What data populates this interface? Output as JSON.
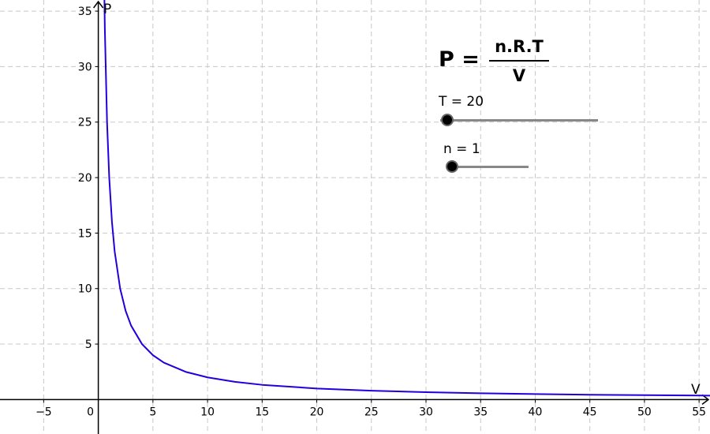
{
  "formula": {
    "lhs": "P",
    "equals": "=",
    "numerator": "n.R.T",
    "denominator": "V"
  },
  "sliders": [
    {
      "label": "T = 20",
      "value": 20
    },
    {
      "label": "n = 1",
      "value": 1
    }
  ],
  "chart_data": {
    "type": "line",
    "xlabel": "V",
    "ylabel": "P",
    "xlim": [
      -9,
      56
    ],
    "ylim": [
      -3.1,
      36
    ],
    "x_ticks": [
      -5,
      0,
      5,
      10,
      15,
      20,
      25,
      30,
      35,
      40,
      45,
      50,
      55
    ],
    "y_ticks": [
      5,
      10,
      15,
      20,
      25,
      30,
      35
    ],
    "grid": true,
    "series": [
      {
        "color": "#2200dd",
        "x": [
          0.5,
          0.6,
          0.8,
          1,
          1.25,
          1.5,
          2,
          2.5,
          3,
          4,
          5,
          6,
          8,
          10,
          12.5,
          15,
          20,
          25,
          30,
          35,
          40,
          45,
          50,
          56
        ],
        "y": [
          40,
          33.33,
          25,
          20,
          16,
          13.33,
          10,
          8,
          6.67,
          5,
          4,
          3.33,
          2.5,
          2,
          1.6,
          1.33,
          1,
          0.8,
          0.67,
          0.57,
          0.5,
          0.44,
          0.4,
          0.36
        ]
      }
    ]
  },
  "colors": {
    "curve": "#2200dd",
    "grid": "#c8c8c8",
    "axis": "#000000"
  }
}
